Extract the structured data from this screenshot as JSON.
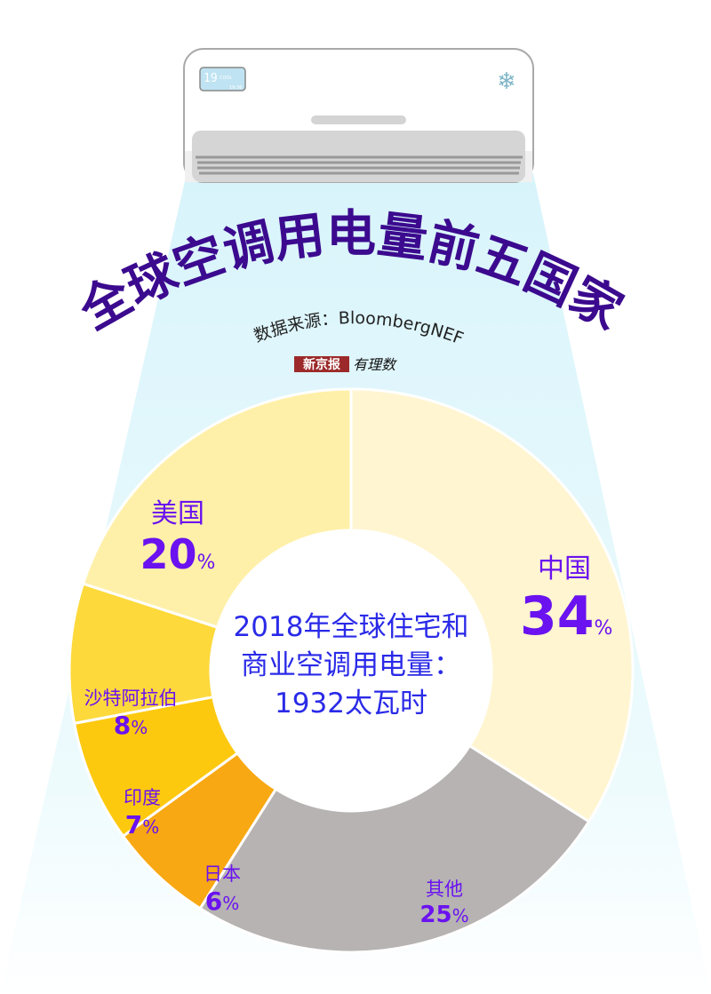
{
  "title": "全球空调用电量前五国家",
  "source": "数据来源：BloombergNEF",
  "logo": {
    "brand": "新京报",
    "column": "有理数"
  },
  "ac_display": {
    "temp": "19",
    "mode": "COOL",
    "time": "19:36"
  },
  "center_text": [
    "2018年全球住宅和",
    "商业空调用电量：",
    "1932太瓦时"
  ],
  "colors": {
    "title": "#3b0a8e",
    "label": "#6a12f0",
    "center": "#2a2ae8",
    "beam": "#dff6fb"
  },
  "chart_data": {
    "type": "pie",
    "donut": true,
    "start": "top",
    "direction": "clockwise",
    "unit": "%",
    "slices": [
      {
        "label": "中国",
        "value": 34,
        "color": "#fff5d1"
      },
      {
        "label": "其他",
        "value": 25,
        "color": "#b6b3b2"
      },
      {
        "label": "日本",
        "value": 6,
        "color": "#f8a812"
      },
      {
        "label": "印度",
        "value": 7,
        "color": "#fdc90f"
      },
      {
        "label": "沙特阿拉伯",
        "value": 8,
        "color": "#fdd93b"
      },
      {
        "label": "美国",
        "value": 20,
        "color": "#fff0a9"
      }
    ]
  }
}
